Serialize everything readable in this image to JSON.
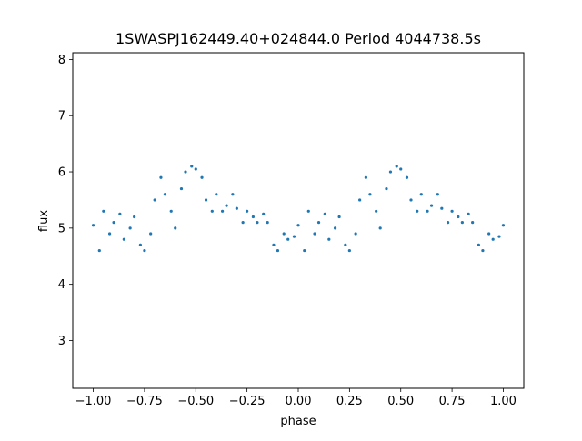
{
  "chart_data": {
    "type": "scatter",
    "title": "1SWASPJ162449.40+024844.0 Period 4044738.5s",
    "xlabel": "phase",
    "ylabel": "flux",
    "xlim": [
      -1.1,
      1.1
    ],
    "ylim": [
      2.15,
      8.12
    ],
    "xticks": [
      -1.0,
      -0.75,
      -0.5,
      -0.25,
      0.0,
      0.25,
      0.5,
      0.75,
      1.0
    ],
    "xtick_labels": [
      "−1.00",
      "−0.75",
      "−0.50",
      "−0.25",
      "0.00",
      "0.25",
      "0.50",
      "0.75",
      "1.00"
    ],
    "yticks": [
      3,
      4,
      5,
      6,
      7,
      8
    ],
    "ytick_labels": [
      "3",
      "4",
      "5",
      "6",
      "7",
      "8"
    ],
    "grid": false,
    "marker_color": "#1f77b4",
    "series": [
      {
        "points": [
          [
            -1.0,
            5.05
          ],
          [
            -0.97,
            4.6
          ],
          [
            -0.95,
            5.3
          ],
          [
            -0.92,
            4.9
          ],
          [
            -0.9,
            5.1
          ],
          [
            -0.87,
            5.25
          ],
          [
            -0.85,
            4.8
          ],
          [
            -0.82,
            5.0
          ],
          [
            -0.8,
            5.2
          ],
          [
            -0.77,
            4.7
          ],
          [
            -0.75,
            4.6
          ],
          [
            -0.72,
            4.9
          ],
          [
            -0.7,
            5.5
          ],
          [
            -0.67,
            5.9
          ],
          [
            -0.65,
            5.6
          ],
          [
            -0.62,
            5.3
          ],
          [
            -0.6,
            5.0
          ],
          [
            -0.57,
            5.7
          ],
          [
            -0.55,
            6.0
          ],
          [
            -0.52,
            6.1
          ],
          [
            -0.5,
            6.05
          ],
          [
            -0.47,
            5.9
          ],
          [
            -0.45,
            5.5
          ],
          [
            -0.42,
            5.3
          ],
          [
            -0.4,
            5.6
          ],
          [
            -0.37,
            5.3
          ],
          [
            -0.35,
            5.4
          ],
          [
            -0.32,
            5.6
          ],
          [
            -0.3,
            5.35
          ],
          [
            -0.27,
            5.1
          ],
          [
            -0.25,
            5.3
          ],
          [
            -0.22,
            5.2
          ],
          [
            -0.2,
            5.1
          ],
          [
            -0.17,
            5.25
          ],
          [
            -0.15,
            5.1
          ],
          [
            -0.12,
            4.7
          ],
          [
            -0.1,
            4.6
          ],
          [
            -0.07,
            4.9
          ],
          [
            -0.05,
            4.8
          ],
          [
            -0.02,
            4.85
          ],
          [
            0.0,
            5.05
          ],
          [
            0.03,
            4.6
          ],
          [
            0.05,
            5.3
          ],
          [
            0.08,
            4.9
          ],
          [
            0.1,
            5.1
          ],
          [
            0.13,
            5.25
          ],
          [
            0.15,
            4.8
          ],
          [
            0.18,
            5.0
          ],
          [
            0.2,
            5.2
          ],
          [
            0.23,
            4.7
          ],
          [
            0.25,
            4.6
          ],
          [
            0.28,
            4.9
          ],
          [
            0.3,
            5.5
          ],
          [
            0.33,
            5.9
          ],
          [
            0.35,
            5.6
          ],
          [
            0.38,
            5.3
          ],
          [
            0.4,
            5.0
          ],
          [
            0.43,
            5.7
          ],
          [
            0.45,
            6.0
          ],
          [
            0.48,
            6.1
          ],
          [
            0.5,
            6.05
          ],
          [
            0.53,
            5.9
          ],
          [
            0.55,
            5.5
          ],
          [
            0.58,
            5.3
          ],
          [
            0.6,
            5.6
          ],
          [
            0.63,
            5.3
          ],
          [
            0.65,
            5.4
          ],
          [
            0.68,
            5.6
          ],
          [
            0.7,
            5.35
          ],
          [
            0.73,
            5.1
          ],
          [
            0.75,
            5.3
          ],
          [
            0.78,
            5.2
          ],
          [
            0.8,
            5.1
          ],
          [
            0.83,
            5.25
          ],
          [
            0.85,
            5.1
          ],
          [
            0.88,
            4.7
          ],
          [
            0.9,
            4.6
          ],
          [
            0.93,
            4.9
          ],
          [
            0.95,
            4.8
          ],
          [
            0.98,
            4.85
          ],
          [
            1.0,
            5.05
          ]
        ]
      }
    ]
  }
}
